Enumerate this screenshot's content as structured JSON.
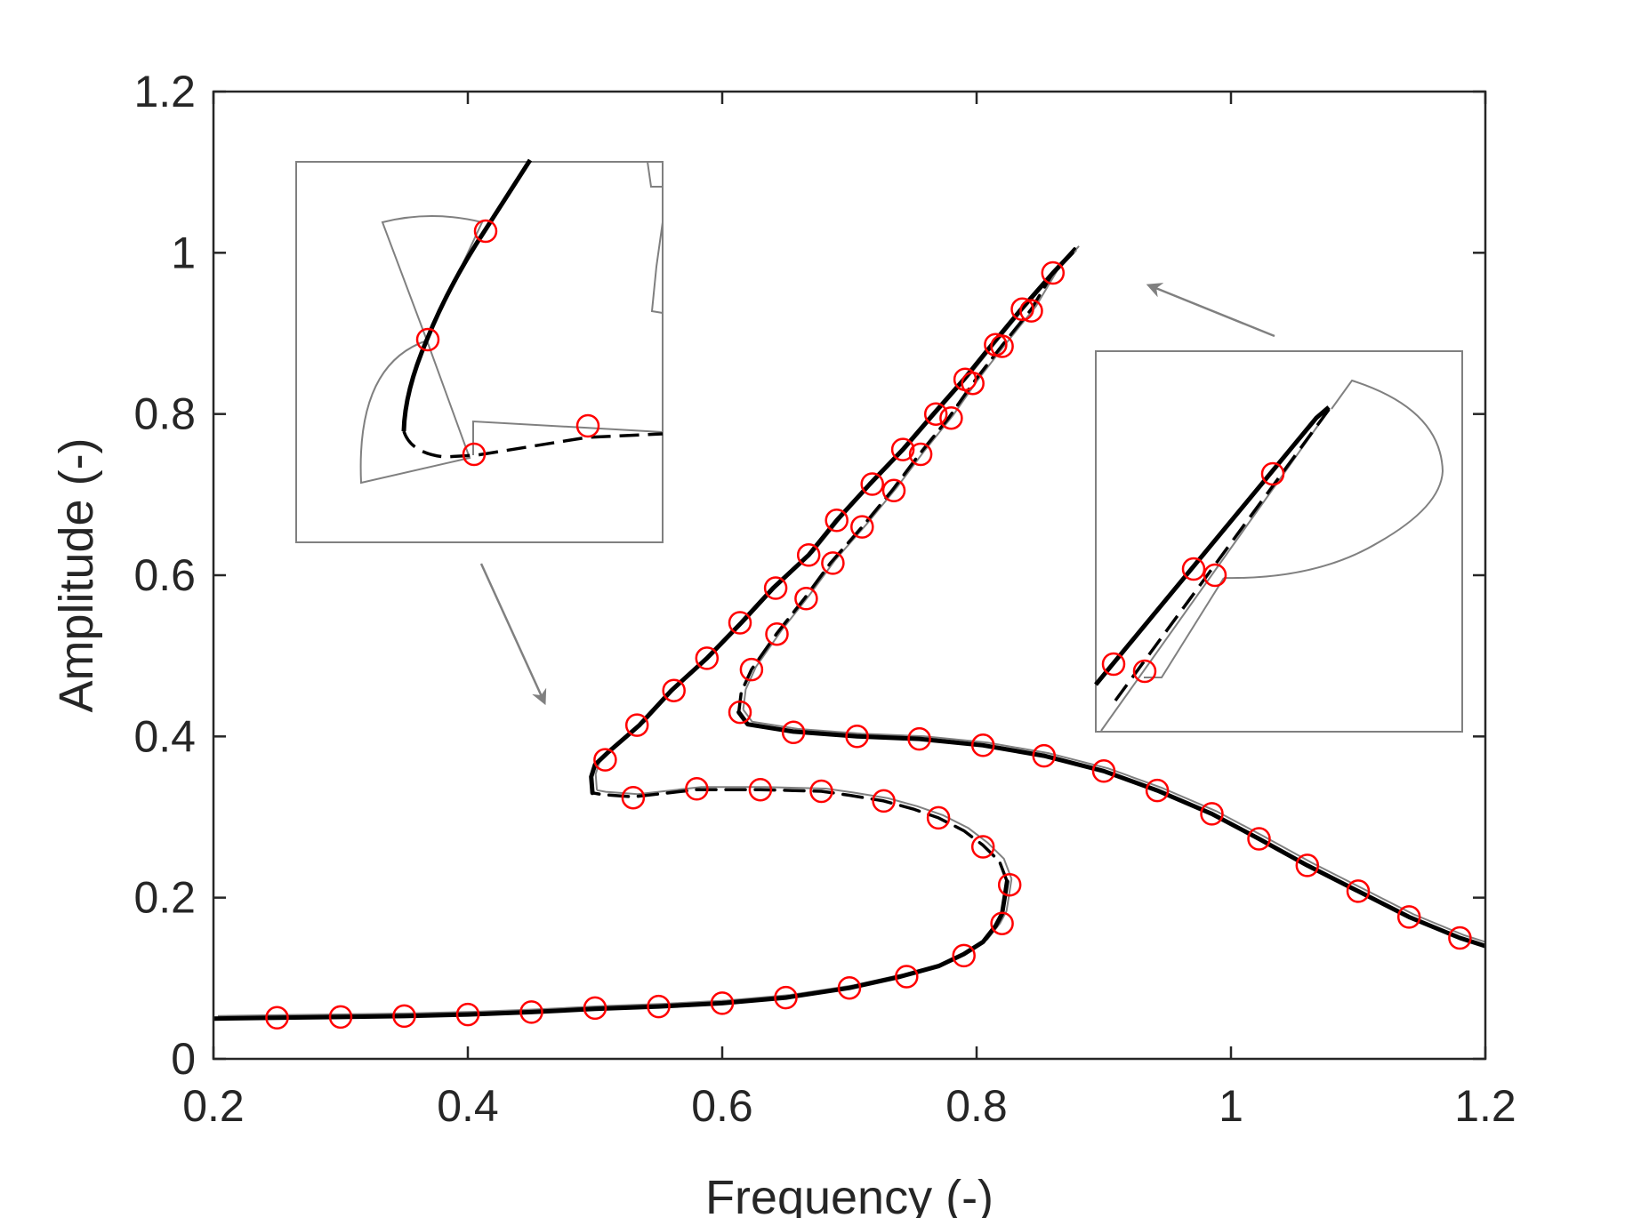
{
  "chart_data": {
    "type": "line",
    "title": "",
    "xlabel": "Frequency (-)",
    "ylabel": "Amplitude (-)",
    "xlim": [
      0.2,
      1.2
    ],
    "ylim": [
      0,
      1.2
    ],
    "xticks": [
      0.2,
      0.4,
      0.6,
      0.8,
      1,
      1.2
    ],
    "xtick_labels": [
      "0.2",
      "0.4",
      "0.6",
      "0.8",
      "1",
      "1.2"
    ],
    "yticks": [
      0,
      0.2,
      0.4,
      0.6,
      0.8,
      1,
      1.2
    ],
    "ytick_labels": [
      "0",
      "0.2",
      "0.4",
      "0.6",
      "0.8",
      "1",
      "1.2"
    ],
    "grid": false,
    "legend": "none",
    "colors": {
      "curve": "#000000",
      "predictor": "#808080",
      "marker": "#ff0000",
      "axis": "#262626"
    },
    "series": [
      {
        "style": "solid",
        "x": [
          0.2,
          0.25,
          0.3,
          0.35,
          0.4,
          0.45,
          0.5,
          0.55,
          0.6,
          0.65,
          0.7,
          0.74,
          0.77,
          0.79,
          0.805,
          0.815,
          0.82,
          0.822,
          0.824
        ],
        "y": [
          0.05,
          0.051,
          0.052,
          0.053,
          0.055,
          0.058,
          0.062,
          0.065,
          0.069,
          0.076,
          0.088,
          0.102,
          0.115,
          0.13,
          0.145,
          0.165,
          0.18,
          0.2,
          0.22
        ]
      },
      {
        "style": "dashed",
        "x": [
          0.824,
          0.818,
          0.805,
          0.79,
          0.77,
          0.75,
          0.727,
          0.7,
          0.678,
          0.63,
          0.58,
          0.53,
          0.505,
          0.498
        ],
        "y": [
          0.22,
          0.245,
          0.265,
          0.283,
          0.299,
          0.31,
          0.32,
          0.327,
          0.332,
          0.334,
          0.334,
          0.325,
          0.328,
          0.33
        ]
      },
      {
        "style": "solid",
        "x": [
          0.498,
          0.497,
          0.5,
          0.51,
          0.535,
          0.56,
          0.588,
          0.615,
          0.64,
          0.668,
          0.69,
          0.716,
          0.742,
          0.766,
          0.79,
          0.812,
          0.835,
          0.86,
          0.875
        ],
        "y": [
          0.33,
          0.35,
          0.365,
          0.38,
          0.414,
          0.457,
          0.497,
          0.541,
          0.584,
          0.625,
          0.668,
          0.713,
          0.756,
          0.8,
          0.843,
          0.886,
          0.93,
          0.975,
          1.0
        ]
      },
      {
        "style": "dashed",
        "x": [
          0.877,
          0.86,
          0.843,
          0.82,
          0.797,
          0.778,
          0.755,
          0.734,
          0.71,
          0.685,
          0.665,
          0.643,
          0.623,
          0.615,
          0.613
        ],
        "y": [
          1.005,
          0.975,
          0.93,
          0.885,
          0.838,
          0.795,
          0.75,
          0.706,
          0.66,
          0.615,
          0.572,
          0.528,
          0.483,
          0.455,
          0.43
        ]
      },
      {
        "style": "solid",
        "x": [
          0.613,
          0.62,
          0.656,
          0.706,
          0.755,
          0.805,
          0.853,
          0.9,
          0.942,
          0.985,
          1.022,
          1.06,
          1.1,
          1.14,
          1.18,
          1.2
        ],
        "y": [
          0.43,
          0.415,
          0.406,
          0.4,
          0.397,
          0.389,
          0.376,
          0.357,
          0.333,
          0.304,
          0.273,
          0.24,
          0.208,
          0.176,
          0.15,
          0.14
        ]
      }
    ],
    "markers": {
      "x": [
        0.25,
        0.3,
        0.35,
        0.4,
        0.45,
        0.5,
        0.55,
        0.6,
        0.65,
        0.7,
        0.745,
        0.79,
        0.82,
        0.826,
        0.805,
        0.77,
        0.727,
        0.678,
        0.63,
        0.58,
        0.53,
        0.508,
        0.533,
        0.562,
        0.588,
        0.614,
        0.642,
        0.668,
        0.69,
        0.718,
        0.742,
        0.768,
        0.791,
        0.815,
        0.836,
        0.86,
        0.843,
        0.82,
        0.797,
        0.78,
        0.756,
        0.735,
        0.71,
        0.687,
        0.666,
        0.643,
        0.623,
        0.614,
        0.656,
        0.706,
        0.755,
        0.805,
        0.853,
        0.9,
        0.942,
        0.985,
        1.022,
        1.06,
        1.1,
        1.14,
        1.18
      ],
      "y": [
        0.051,
        0.052,
        0.053,
        0.055,
        0.058,
        0.063,
        0.065,
        0.069,
        0.076,
        0.088,
        0.102,
        0.128,
        0.168,
        0.216,
        0.263,
        0.299,
        0.32,
        0.332,
        0.334,
        0.335,
        0.324,
        0.371,
        0.414,
        0.457,
        0.497,
        0.541,
        0.584,
        0.625,
        0.668,
        0.713,
        0.756,
        0.8,
        0.843,
        0.886,
        0.93,
        0.975,
        0.928,
        0.884,
        0.838,
        0.795,
        0.75,
        0.705,
        0.66,
        0.615,
        0.571,
        0.527,
        0.483,
        0.43,
        0.405,
        0.4,
        0.397,
        0.389,
        0.376,
        0.357,
        0.333,
        0.304,
        0.273,
        0.24,
        0.208,
        0.176,
        0.15
      ]
    }
  }
}
